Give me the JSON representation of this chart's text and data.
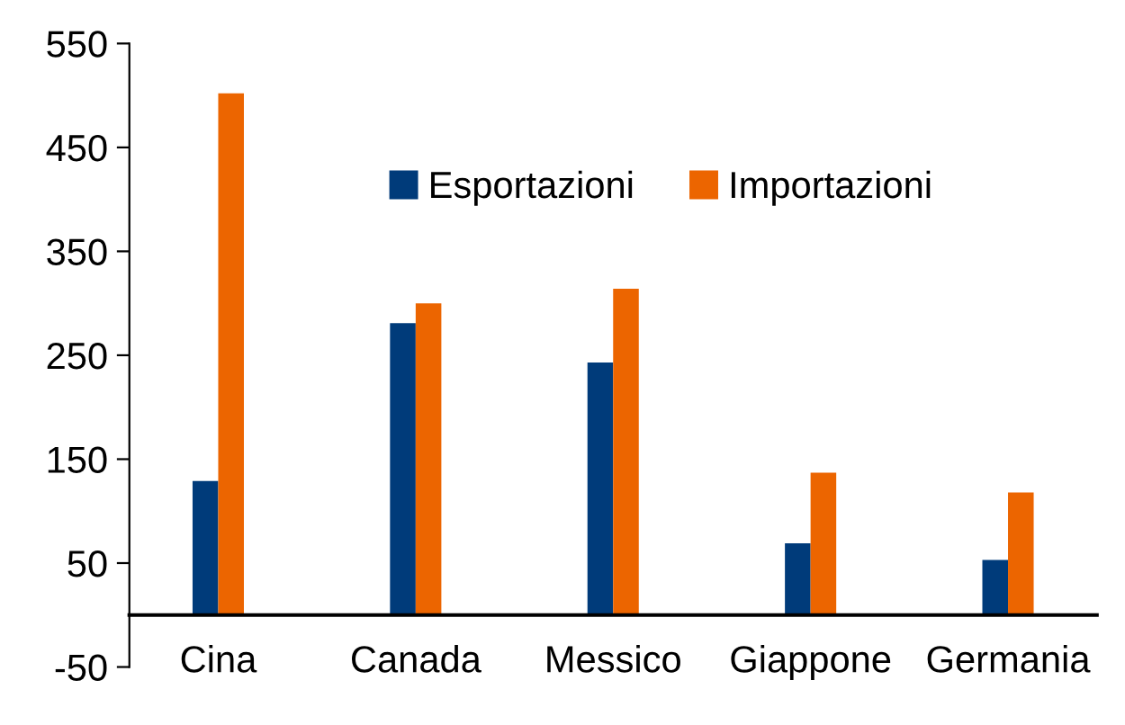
{
  "chart_data": {
    "type": "bar",
    "categories": [
      "Cina",
      "Canada",
      "Messico",
      "Giappone",
      "Germania"
    ],
    "series": [
      {
        "name": "Esportazioni",
        "color": "#003b7a",
        "values": [
          129,
          281,
          243,
          69,
          53
        ]
      },
      {
        "name": "Importazioni",
        "color": "#ec6500",
        "values": [
          502,
          300,
          314,
          137,
          118
        ]
      }
    ],
    "ylim": [
      -50,
      550
    ],
    "yticks": [
      -50,
      50,
      150,
      250,
      350,
      450,
      550
    ],
    "grid": false,
    "legend": "top"
  }
}
